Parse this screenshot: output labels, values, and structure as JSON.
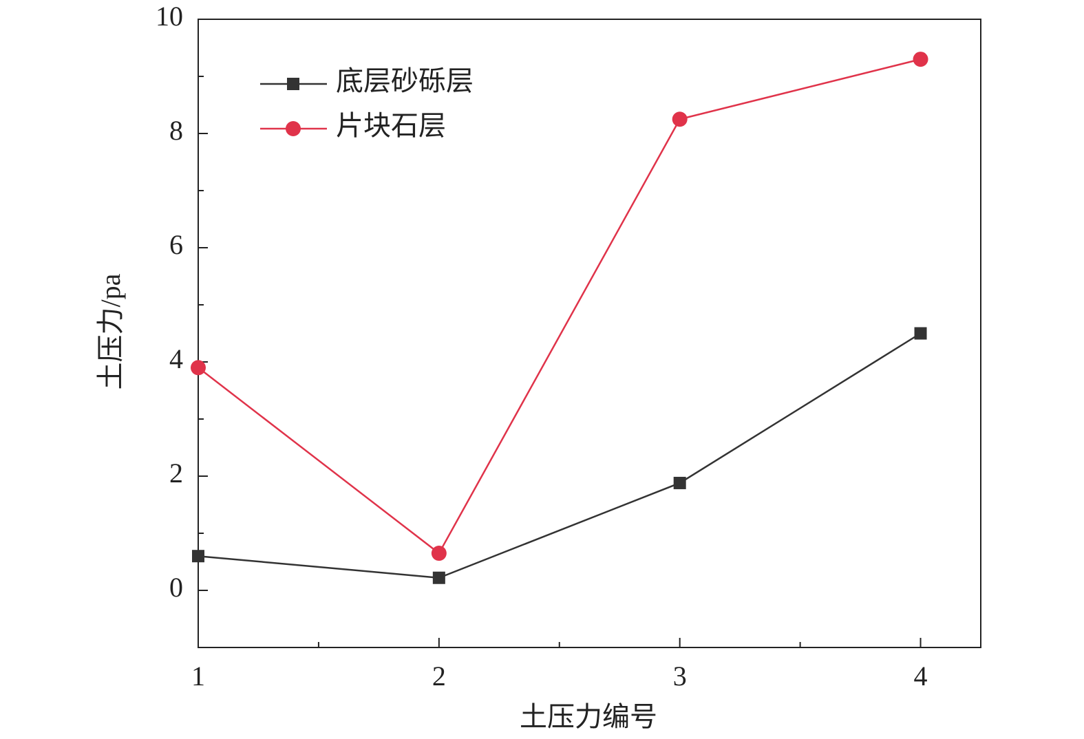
{
  "chart_data": {
    "type": "line",
    "x": [
      1,
      2,
      3,
      4
    ],
    "series": [
      {
        "name": "底层砂砾层",
        "color": "#333333",
        "marker": "square",
        "values": [
          0.6,
          0.22,
          1.88,
          4.5
        ]
      },
      {
        "name": "片块石层",
        "color": "#e0334a",
        "marker": "circle",
        "values": [
          3.9,
          0.65,
          8.25,
          9.3
        ]
      }
    ],
    "xlabel": "土压力编号",
    "ylabel": "土压力/pa",
    "xlim": [
      1,
      4.25
    ],
    "ylim": [
      -1,
      10
    ],
    "xticks": [
      1,
      2,
      3,
      4
    ],
    "yticks": [
      0,
      2,
      4,
      6,
      8,
      10
    ],
    "legend": "upper-left"
  }
}
